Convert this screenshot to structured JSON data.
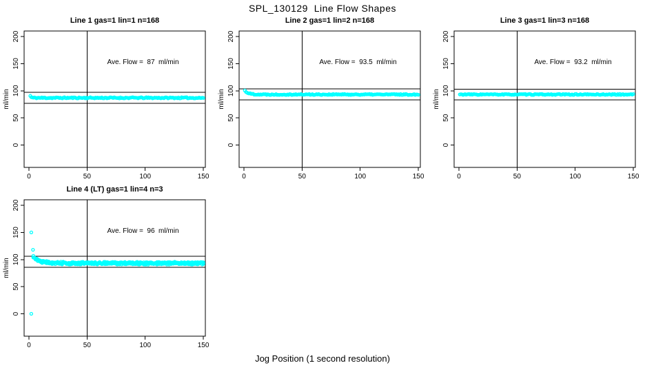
{
  "colors": {
    "points": "#00FFFF",
    "axis": "#000000",
    "background": "#FFFFFF"
  },
  "chart_data": {
    "type": "scatter",
    "layout": "2x2-grid",
    "title": "SPL_130129  Line Flow Shapes",
    "xlabel": "Jog Position (1 second resolution)",
    "ylabel": "ml/min",
    "x_ticks": [
      0,
      50,
      100,
      150
    ],
    "y_ticks": [
      0,
      50,
      100,
      150,
      200
    ],
    "xlim": [
      0,
      150
    ],
    "ylim": [
      0,
      200
    ],
    "grid": "off",
    "marker": "open-circle",
    "panels": [
      {
        "title": "Line 1 gas=1 lin=1 n=168",
        "annotation": "Ave. Flow =  87  ml/min",
        "ave_flow": 87,
        "n": 168,
        "vline_x": 50,
        "ref_lines": [
          97,
          77
        ],
        "band": {
          "x_start": 1.2,
          "x_end": 150,
          "n": 168,
          "steady": 87,
          "transient_amp": 3.5,
          "transient_tau": 0.8,
          "noise": 1.1,
          "runs": 1,
          "run_offsets": [
            0
          ],
          "seed": 11
        },
        "outliers": []
      },
      {
        "title": "Line 2 gas=1 lin=2 n=168",
        "annotation": "Ave. Flow =  93.5  ml/min",
        "ave_flow": 93.5,
        "n": 168,
        "vline_x": 50,
        "ref_lines": [
          103.5,
          83.5
        ],
        "band": {
          "x_start": 0.8,
          "x_end": 150,
          "n": 168,
          "steady": 93.2,
          "transient_amp": 7,
          "transient_tau": 3,
          "noise": 1.0,
          "runs": 1,
          "run_offsets": [
            0
          ],
          "seed": 22
        },
        "outliers": []
      },
      {
        "title": "Line 3 gas=1 lin=3 n=168",
        "annotation": "Ave. Flow =  93.2  ml/min",
        "ave_flow": 93.2,
        "n": 168,
        "vline_x": 50,
        "ref_lines": [
          103.2,
          83.2
        ],
        "band": {
          "x_start": 0.8,
          "x_end": 150,
          "n": 168,
          "steady": 93.2,
          "transient_amp": 0,
          "transient_tau": 1,
          "noise": 0.9,
          "runs": 1,
          "run_offsets": [
            0
          ],
          "seed": 33
        },
        "outliers": []
      },
      {
        "title": "Line 4 (LT) gas=1 lin=4 n=3",
        "annotation": "Ave. Flow =  96  ml/min",
        "ave_flow": 96,
        "n": 3,
        "vline_x": 50,
        "ref_lines": [
          106,
          86
        ],
        "band": {
          "x_start": 3.8,
          "x_end": 150,
          "n": 155,
          "steady": 93.3,
          "transient_amp": 11.5,
          "transient_tau": 5.5,
          "noise": 1.7,
          "runs": 3,
          "run_offsets": [
            0.9,
            0,
            -0.9
          ],
          "seed": 44
        },
        "outliers": [
          [
            2,
            150
          ],
          [
            3.5,
            118
          ],
          [
            2,
            0
          ]
        ]
      }
    ]
  }
}
